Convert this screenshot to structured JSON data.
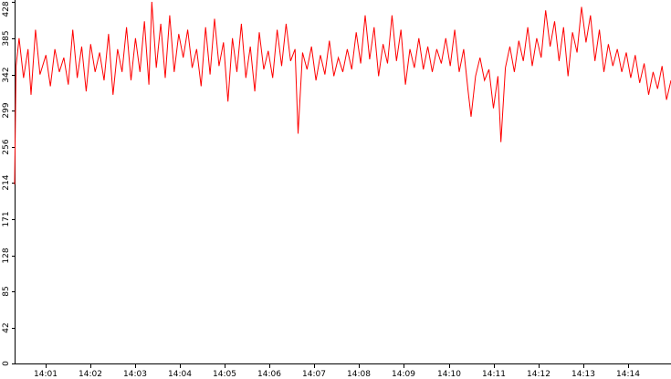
{
  "chart_data": {
    "type": "line",
    "title": "",
    "xlabel": "",
    "ylabel": "",
    "ylim": [
      0,
      428
    ],
    "y_ticks": [
      "0",
      "42",
      "85",
      "128",
      "171",
      "214",
      "256",
      "299",
      "342",
      "385",
      "428"
    ],
    "x_ticks": [
      "14:01",
      "14:02",
      "14:03",
      "14:04",
      "14:05",
      "14:06",
      "14:07",
      "14:08",
      "14:09",
      "14:10",
      "14:11",
      "14:12",
      "14:13",
      "14:14"
    ],
    "x_start": "14:00:18",
    "x_end": "14:14:58",
    "grid": false,
    "series": [
      {
        "color": "#ff0000",
        "points": [
          [
            "14:00:18",
            212
          ],
          [
            "14:00:20",
            352
          ],
          [
            "14:00:24",
            385
          ],
          [
            "14:00:30",
            338
          ],
          [
            "14:00:36",
            372
          ],
          [
            "14:00:40",
            318
          ],
          [
            "14:00:46",
            395
          ],
          [
            "14:00:52",
            342
          ],
          [
            "14:01:00",
            365
          ],
          [
            "14:01:06",
            328
          ],
          [
            "14:01:12",
            372
          ],
          [
            "14:01:18",
            345
          ],
          [
            "14:01:24",
            362
          ],
          [
            "14:01:30",
            330
          ],
          [
            "14:01:36",
            395
          ],
          [
            "14:01:42",
            338
          ],
          [
            "14:01:48",
            375
          ],
          [
            "14:01:54",
            322
          ],
          [
            "14:02:00",
            378
          ],
          [
            "14:02:06",
            345
          ],
          [
            "14:02:12",
            368
          ],
          [
            "14:02:18",
            335
          ],
          [
            "14:02:24",
            390
          ],
          [
            "14:02:30",
            318
          ],
          [
            "14:02:36",
            372
          ],
          [
            "14:02:42",
            345
          ],
          [
            "14:02:48",
            398
          ],
          [
            "14:02:54",
            335
          ],
          [
            "14:03:00",
            385
          ],
          [
            "14:03:06",
            345
          ],
          [
            "14:03:12",
            405
          ],
          [
            "14:03:18",
            330
          ],
          [
            "14:03:22",
            428
          ],
          [
            "14:03:28",
            350
          ],
          [
            "14:03:34",
            402
          ],
          [
            "14:03:40",
            338
          ],
          [
            "14:03:46",
            412
          ],
          [
            "14:03:52",
            345
          ],
          [
            "14:03:58",
            390
          ],
          [
            "14:04:04",
            362
          ],
          [
            "14:04:10",
            395
          ],
          [
            "14:04:16",
            350
          ],
          [
            "14:04:22",
            372
          ],
          [
            "14:04:28",
            328
          ],
          [
            "14:04:34",
            398
          ],
          [
            "14:04:40",
            342
          ],
          [
            "14:04:46",
            408
          ],
          [
            "14:04:52",
            352
          ],
          [
            "14:04:58",
            380
          ],
          [
            "14:05:04",
            310
          ],
          [
            "14:05:10",
            385
          ],
          [
            "14:05:16",
            345
          ],
          [
            "14:05:22",
            402
          ],
          [
            "14:05:28",
            338
          ],
          [
            "14:05:34",
            375
          ],
          [
            "14:05:40",
            322
          ],
          [
            "14:05:46",
            392
          ],
          [
            "14:05:52",
            348
          ],
          [
            "14:05:58",
            370
          ],
          [
            "14:06:04",
            338
          ],
          [
            "14:06:10",
            395
          ],
          [
            "14:06:16",
            352
          ],
          [
            "14:06:22",
            402
          ],
          [
            "14:06:28",
            358
          ],
          [
            "14:06:34",
            372
          ],
          [
            "14:06:38",
            272
          ],
          [
            "14:06:44",
            368
          ],
          [
            "14:06:50",
            348
          ],
          [
            "14:06:56",
            375
          ],
          [
            "14:07:02",
            335
          ],
          [
            "14:07:08",
            365
          ],
          [
            "14:07:14",
            342
          ],
          [
            "14:07:20",
            382
          ],
          [
            "14:07:26",
            340
          ],
          [
            "14:07:32",
            362
          ],
          [
            "14:07:38",
            345
          ],
          [
            "14:07:44",
            372
          ],
          [
            "14:07:50",
            348
          ],
          [
            "14:07:56",
            392
          ],
          [
            "14:08:02",
            355
          ],
          [
            "14:08:08",
            412
          ],
          [
            "14:08:14",
            360
          ],
          [
            "14:08:20",
            398
          ],
          [
            "14:08:26",
            340
          ],
          [
            "14:08:32",
            378
          ],
          [
            "14:08:38",
            355
          ],
          [
            "14:08:44",
            412
          ],
          [
            "14:08:50",
            358
          ],
          [
            "14:08:56",
            395
          ],
          [
            "14:09:02",
            330
          ],
          [
            "14:09:08",
            372
          ],
          [
            "14:09:14",
            350
          ],
          [
            "14:09:20",
            385
          ],
          [
            "14:09:26",
            348
          ],
          [
            "14:09:32",
            375
          ],
          [
            "14:09:38",
            345
          ],
          [
            "14:09:44",
            372
          ],
          [
            "14:09:50",
            355
          ],
          [
            "14:09:56",
            385
          ],
          [
            "14:10:02",
            352
          ],
          [
            "14:10:08",
            395
          ],
          [
            "14:10:14",
            345
          ],
          [
            "14:10:20",
            372
          ],
          [
            "14:10:26",
            322
          ],
          [
            "14:10:30",
            292
          ],
          [
            "14:10:36",
            340
          ],
          [
            "14:10:42",
            362
          ],
          [
            "14:10:48",
            335
          ],
          [
            "14:10:54",
            348
          ],
          [
            "14:11:00",
            302
          ],
          [
            "14:11:06",
            340
          ],
          [
            "14:11:10",
            262
          ],
          [
            "14:11:16",
            350
          ],
          [
            "14:11:22",
            375
          ],
          [
            "14:11:28",
            345
          ],
          [
            "14:11:34",
            382
          ],
          [
            "14:11:40",
            358
          ],
          [
            "14:11:46",
            398
          ],
          [
            "14:11:52",
            352
          ],
          [
            "14:11:58",
            385
          ],
          [
            "14:12:04",
            362
          ],
          [
            "14:12:10",
            418
          ],
          [
            "14:12:16",
            375
          ],
          [
            "14:12:22",
            405
          ],
          [
            "14:12:28",
            358
          ],
          [
            "14:12:34",
            398
          ],
          [
            "14:12:40",
            340
          ],
          [
            "14:12:46",
            392
          ],
          [
            "14:12:52",
            368
          ],
          [
            "14:12:58",
            422
          ],
          [
            "14:13:04",
            380
          ],
          [
            "14:13:10",
            412
          ],
          [
            "14:13:16",
            358
          ],
          [
            "14:13:22",
            395
          ],
          [
            "14:13:28",
            345
          ],
          [
            "14:13:34",
            378
          ],
          [
            "14:13:40",
            352
          ],
          [
            "14:13:46",
            372
          ],
          [
            "14:13:52",
            345
          ],
          [
            "14:13:58",
            368
          ],
          [
            "14:14:04",
            338
          ],
          [
            "14:14:10",
            365
          ],
          [
            "14:14:16",
            332
          ],
          [
            "14:14:22",
            355
          ],
          [
            "14:14:28",
            318
          ],
          [
            "14:14:34",
            345
          ],
          [
            "14:14:40",
            325
          ],
          [
            "14:14:46",
            352
          ],
          [
            "14:14:52",
            312
          ],
          [
            "14:14:58",
            335
          ]
        ]
      }
    ]
  }
}
